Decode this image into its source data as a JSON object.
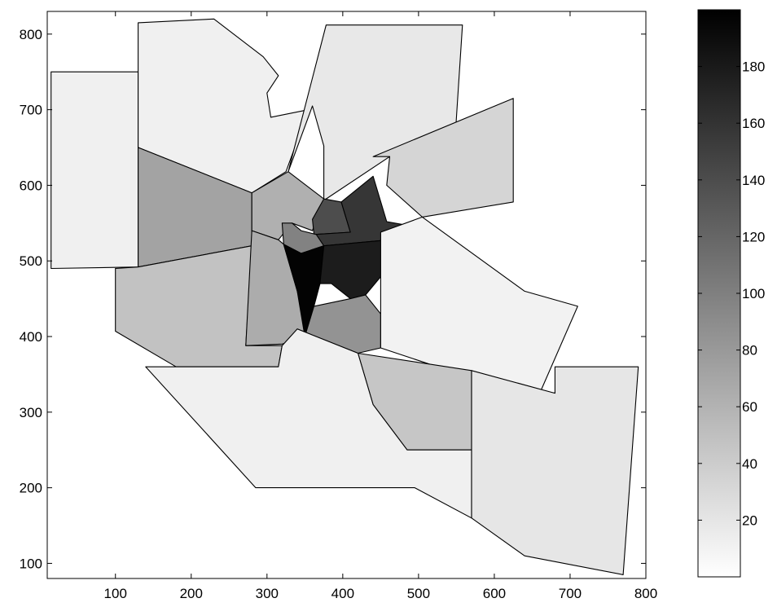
{
  "chart_data": {
    "type": "choropleth",
    "colormap": "gray (0 = white, 200 = black)",
    "xlim": [
      10,
      800
    ],
    "ylim": [
      80,
      830
    ],
    "x_ticks": [
      100,
      200,
      300,
      400,
      500,
      600,
      700,
      800
    ],
    "y_ticks": [
      100,
      200,
      300,
      400,
      500,
      600,
      700,
      800
    ],
    "grid": false,
    "colorbar": {
      "position": "right",
      "range": [
        0,
        200
      ],
      "ticks": [
        20,
        40,
        60,
        80,
        100,
        120,
        140,
        160,
        180
      ]
    },
    "regions": [
      {
        "value": 12,
        "polygon": [
          [
            15,
            750
          ],
          [
            130,
            750
          ],
          [
            130,
            492
          ],
          [
            15,
            490
          ]
        ]
      },
      {
        "value": 12,
        "polygon": [
          [
            130,
            815
          ],
          [
            230,
            820
          ],
          [
            295,
            770
          ],
          [
            315,
            745
          ],
          [
            300,
            722
          ],
          [
            305,
            690
          ],
          [
            355,
            700
          ],
          [
            325,
            618
          ],
          [
            280,
            590
          ],
          [
            130,
            650
          ]
        ]
      },
      {
        "value": 18,
        "polygon": [
          [
            378,
            812
          ],
          [
            558,
            812
          ],
          [
            548,
            658
          ],
          [
            462,
            638
          ],
          [
            375,
            580
          ],
          [
            375,
            652
          ],
          [
            360,
            705
          ],
          [
            328,
            618
          ]
        ]
      },
      {
        "value": 33,
        "polygon": [
          [
            440,
            638
          ],
          [
            625,
            715
          ],
          [
            625,
            578
          ],
          [
            505,
            558
          ],
          [
            458,
            600
          ],
          [
            462,
            638
          ]
        ]
      },
      {
        "value": 72,
        "polygon": [
          [
            130,
            650
          ],
          [
            280,
            590
          ],
          [
            280,
            520
          ],
          [
            130,
            492
          ]
        ]
      },
      {
        "value": 48,
        "polygon": [
          [
            130,
            492
          ],
          [
            280,
            520
          ],
          [
            272,
            388
          ],
          [
            320,
            388
          ],
          [
            315,
            360
          ],
          [
            180,
            360
          ],
          [
            100,
            407
          ],
          [
            100,
            490
          ]
        ]
      },
      {
        "value": 62,
        "polygon": [
          [
            280,
            590
          ],
          [
            328,
            618
          ],
          [
            375,
            582
          ],
          [
            360,
            540
          ],
          [
            333,
            550
          ],
          [
            315,
            528
          ],
          [
            280,
            540
          ]
        ]
      },
      {
        "value": 140,
        "polygon": [
          [
            375,
            582
          ],
          [
            398,
            578
          ],
          [
            410,
            538
          ],
          [
            362,
            535
          ],
          [
            360,
            555
          ]
        ]
      },
      {
        "value": 158,
        "polygon": [
          [
            398,
            578
          ],
          [
            440,
            612
          ],
          [
            458,
            552
          ],
          [
            480,
            548
          ],
          [
            462,
            528
          ],
          [
            375,
            520
          ],
          [
            362,
            535
          ],
          [
            410,
            538
          ]
        ]
      },
      {
        "value": 98,
        "polygon": [
          [
            320,
            550
          ],
          [
            333,
            550
          ],
          [
            345,
            540
          ],
          [
            365,
            535
          ],
          [
            375,
            520
          ],
          [
            345,
            510
          ],
          [
            322,
            522
          ]
        ]
      },
      {
        "value": 65,
        "polygon": [
          [
            280,
            540
          ],
          [
            315,
            528
          ],
          [
            322,
            522
          ],
          [
            340,
            460
          ],
          [
            355,
            400
          ],
          [
            320,
            390
          ],
          [
            272,
            388
          ]
        ]
      },
      {
        "value": 198,
        "polygon": [
          [
            322,
            522
          ],
          [
            345,
            510
          ],
          [
            375,
            520
          ],
          [
            370,
            470
          ],
          [
            362,
            440
          ],
          [
            350,
            400
          ],
          [
            340,
            460
          ]
        ]
      },
      {
        "value": 178,
        "polygon": [
          [
            375,
            520
          ],
          [
            462,
            528
          ],
          [
            455,
            485
          ],
          [
            430,
            455
          ],
          [
            410,
            450
          ],
          [
            385,
            470
          ],
          [
            370,
            470
          ]
        ]
      },
      {
        "value": 85,
        "polygon": [
          [
            350,
            400
          ],
          [
            362,
            440
          ],
          [
            410,
            450
          ],
          [
            430,
            455
          ],
          [
            450,
            430
          ],
          [
            450,
            385
          ],
          [
            420,
            378
          ],
          [
            340,
            410
          ]
        ]
      },
      {
        "value": 10,
        "polygon": [
          [
            450,
            538
          ],
          [
            505,
            558
          ],
          [
            640,
            460
          ],
          [
            710,
            440
          ],
          [
            660,
            325
          ],
          [
            680,
            325
          ],
          [
            570,
            345
          ],
          [
            450,
            385
          ]
        ]
      },
      {
        "value": 45,
        "polygon": [
          [
            420,
            378
          ],
          [
            570,
            355
          ],
          [
            570,
            250
          ],
          [
            485,
            250
          ],
          [
            440,
            310
          ]
        ]
      },
      {
        "value": 12,
        "polygon": [
          [
            180,
            360
          ],
          [
            315,
            360
          ],
          [
            320,
            388
          ],
          [
            340,
            410
          ],
          [
            420,
            378
          ],
          [
            440,
            310
          ],
          [
            485,
            250
          ],
          [
            570,
            250
          ],
          [
            570,
            160
          ],
          [
            495,
            200
          ],
          [
            285,
            200
          ],
          [
            140,
            360
          ]
        ]
      },
      {
        "value": 20,
        "polygon": [
          [
            570,
            355
          ],
          [
            680,
            325
          ],
          [
            680,
            360
          ],
          [
            790,
            360
          ],
          [
            770,
            85
          ],
          [
            640,
            110
          ],
          [
            570,
            160
          ]
        ]
      }
    ]
  }
}
